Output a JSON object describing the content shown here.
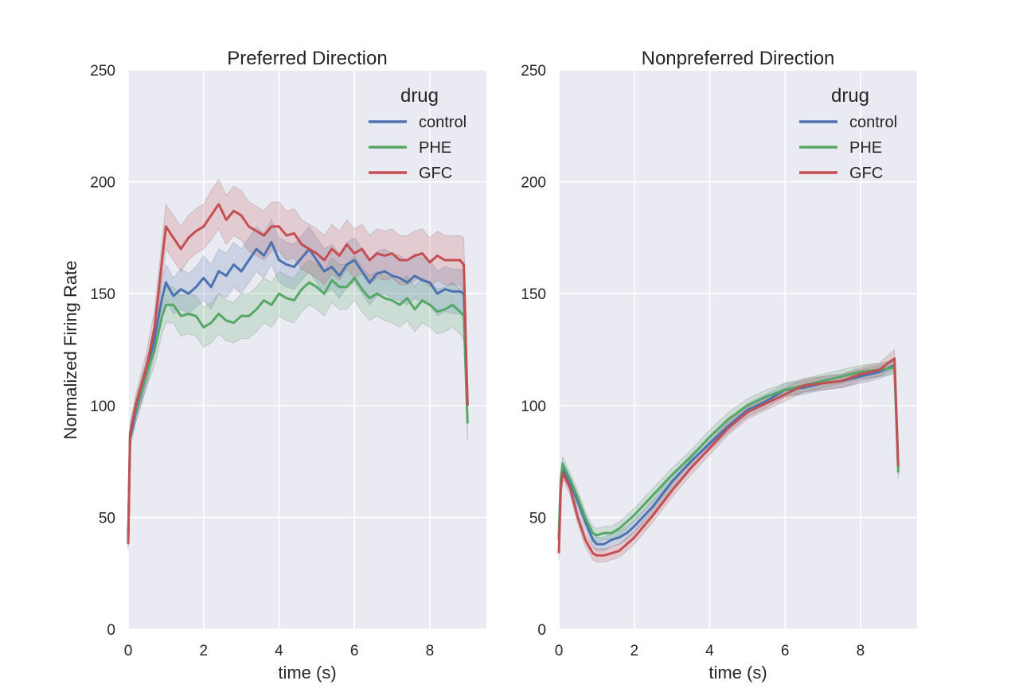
{
  "figure": {
    "ylabel": "Normalized Firing Rate",
    "legend_title": "drug",
    "series_colors": {
      "control": "#4c72b0",
      "PHE": "#55a868",
      "GFC": "#c44e52"
    },
    "plot_bg": "#eaeaf2",
    "grid_color": "#ffffff"
  },
  "chart_data": [
    {
      "type": "line",
      "title": "Preferred Direction",
      "xlabel": "time (s)",
      "ylabel": "Normalized Firing Rate",
      "xlim": [
        0,
        9.5
      ],
      "ylim": [
        0,
        250
      ],
      "xticks": [
        0,
        2,
        4,
        6,
        8
      ],
      "yticks": [
        0,
        50,
        100,
        150,
        200,
        250
      ],
      "grid": true,
      "legend": {
        "title": "drug",
        "placement": "top-right"
      },
      "x": [
        0,
        0.05,
        0.2,
        0.5,
        0.7,
        0.9,
        1.0,
        1.2,
        1.4,
        1.6,
        1.8,
        2.0,
        2.2,
        2.4,
        2.6,
        2.8,
        3.0,
        3.2,
        3.4,
        3.6,
        3.8,
        4.0,
        4.2,
        4.4,
        4.6,
        4.8,
        5.0,
        5.2,
        5.4,
        5.6,
        5.8,
        6.0,
        6.2,
        6.4,
        6.6,
        6.8,
        7.0,
        7.2,
        7.4,
        7.6,
        7.8,
        8.0,
        8.2,
        8.4,
        8.6,
        8.8,
        8.9,
        9.0
      ],
      "series": [
        {
          "name": "control",
          "values": [
            40,
            85,
            97,
            115,
            130,
            148,
            155,
            149,
            152,
            150,
            153,
            157,
            153,
            160,
            158,
            163,
            160,
            165,
            170,
            167,
            173,
            165,
            163,
            162,
            166,
            170,
            165,
            160,
            162,
            158,
            163,
            165,
            160,
            155,
            159,
            160,
            158,
            157,
            155,
            158,
            156,
            155,
            150,
            152,
            151,
            151,
            150,
            100
          ],
          "ci": [
            3,
            4,
            5,
            6,
            7,
            8,
            8,
            8,
            9,
            9,
            9,
            10,
            10,
            10,
            10,
            10,
            10,
            10,
            10,
            10,
            10,
            10,
            10,
            10,
            10,
            10,
            10,
            10,
            10,
            10,
            10,
            10,
            10,
            10,
            10,
            10,
            10,
            10,
            10,
            10,
            10,
            10,
            10,
            10,
            10,
            10,
            10,
            8
          ]
        },
        {
          "name": "PHE",
          "values": [
            40,
            88,
            98,
            115,
            125,
            140,
            145,
            145,
            140,
            141,
            140,
            135,
            137,
            141,
            138,
            137,
            140,
            140,
            143,
            147,
            145,
            150,
            148,
            147,
            152,
            155,
            153,
            150,
            156,
            153,
            153,
            157,
            152,
            148,
            150,
            148,
            147,
            145,
            148,
            143,
            147,
            145,
            142,
            143,
            145,
            142,
            140,
            92
          ],
          "ci": [
            3,
            4,
            5,
            6,
            7,
            8,
            8,
            8,
            9,
            9,
            9,
            9,
            9,
            9,
            9,
            9,
            10,
            10,
            10,
            10,
            10,
            10,
            10,
            10,
            10,
            10,
            10,
            10,
            10,
            10,
            10,
            10,
            10,
            10,
            10,
            10,
            10,
            10,
            10,
            10,
            10,
            10,
            10,
            10,
            10,
            10,
            11,
            8
          ]
        },
        {
          "name": "GFC",
          "values": [
            38,
            87,
            100,
            118,
            135,
            165,
            180,
            175,
            170,
            175,
            178,
            180,
            185,
            190,
            183,
            187,
            185,
            180,
            178,
            176,
            180,
            180,
            176,
            177,
            172,
            170,
            168,
            165,
            170,
            167,
            172,
            168,
            170,
            165,
            168,
            167,
            168,
            165,
            165,
            167,
            168,
            164,
            167,
            165,
            165,
            165,
            163,
            100
          ],
          "ci": [
            3,
            4,
            5,
            7,
            8,
            9,
            10,
            10,
            10,
            10,
            10,
            10,
            11,
            11,
            11,
            11,
            11,
            11,
            11,
            11,
            11,
            11,
            11,
            11,
            11,
            11,
            11,
            11,
            11,
            11,
            11,
            11,
            11,
            11,
            11,
            11,
            11,
            11,
            11,
            11,
            11,
            11,
            11,
            11,
            11,
            11,
            12,
            8
          ]
        }
      ]
    },
    {
      "type": "line",
      "title": "Nonpreferred Direction",
      "xlabel": "time (s)",
      "ylabel": "",
      "xlim": [
        0,
        9.5
      ],
      "ylim": [
        0,
        250
      ],
      "xticks": [
        0,
        2,
        4,
        6,
        8
      ],
      "yticks": [
        0,
        50,
        100,
        150,
        200,
        250
      ],
      "grid": true,
      "legend": {
        "title": "drug",
        "placement": "top-right"
      },
      "x": [
        0,
        0.05,
        0.1,
        0.3,
        0.5,
        0.7,
        0.9,
        1.0,
        1.2,
        1.4,
        1.6,
        1.8,
        2.0,
        2.5,
        3.0,
        3.5,
        4.0,
        4.5,
        5.0,
        5.5,
        6.0,
        6.5,
        7.0,
        7.5,
        8.0,
        8.5,
        8.9,
        9.0
      ],
      "series": [
        {
          "name": "control",
          "values": [
            40,
            65,
            72,
            65,
            57,
            48,
            40,
            38,
            38,
            40,
            41,
            43,
            46,
            55,
            66,
            75,
            83,
            91,
            98,
            102,
            107,
            108,
            110,
            111,
            113,
            115,
            118,
            72
          ],
          "ci": [
            3,
            3,
            3,
            3,
            3,
            3,
            3,
            3,
            3,
            3,
            3,
            3,
            3,
            3,
            3,
            3,
            3,
            3,
            3,
            3,
            3,
            3,
            3,
            3,
            3,
            3,
            3,
            3
          ]
        },
        {
          "name": "PHE",
          "values": [
            42,
            67,
            74,
            67,
            59,
            50,
            43,
            42,
            43,
            43,
            45,
            48,
            51,
            60,
            69,
            77,
            86,
            94,
            100,
            104,
            107,
            109,
            111,
            113,
            115,
            116,
            117,
            70
          ],
          "ci": [
            3,
            3,
            3,
            3,
            3,
            3,
            3,
            3,
            3,
            3,
            3,
            3,
            3,
            3,
            3,
            3,
            3,
            3,
            3,
            3,
            3,
            3,
            3,
            3,
            3,
            3,
            3,
            3
          ]
        },
        {
          "name": "GFC",
          "values": [
            34,
            62,
            70,
            63,
            50,
            40,
            34,
            33,
            33,
            34,
            35,
            38,
            41,
            51,
            62,
            72,
            81,
            90,
            97,
            101,
            105,
            109,
            110,
            111,
            114,
            116,
            121,
            73
          ],
          "ci": [
            3,
            3,
            3,
            3,
            3,
            3,
            3,
            3,
            3,
            3,
            3,
            3,
            3,
            3,
            3,
            3,
            3,
            3,
            3,
            3,
            3,
            3,
            3,
            3,
            3,
            3,
            4,
            3
          ]
        }
      ]
    }
  ]
}
